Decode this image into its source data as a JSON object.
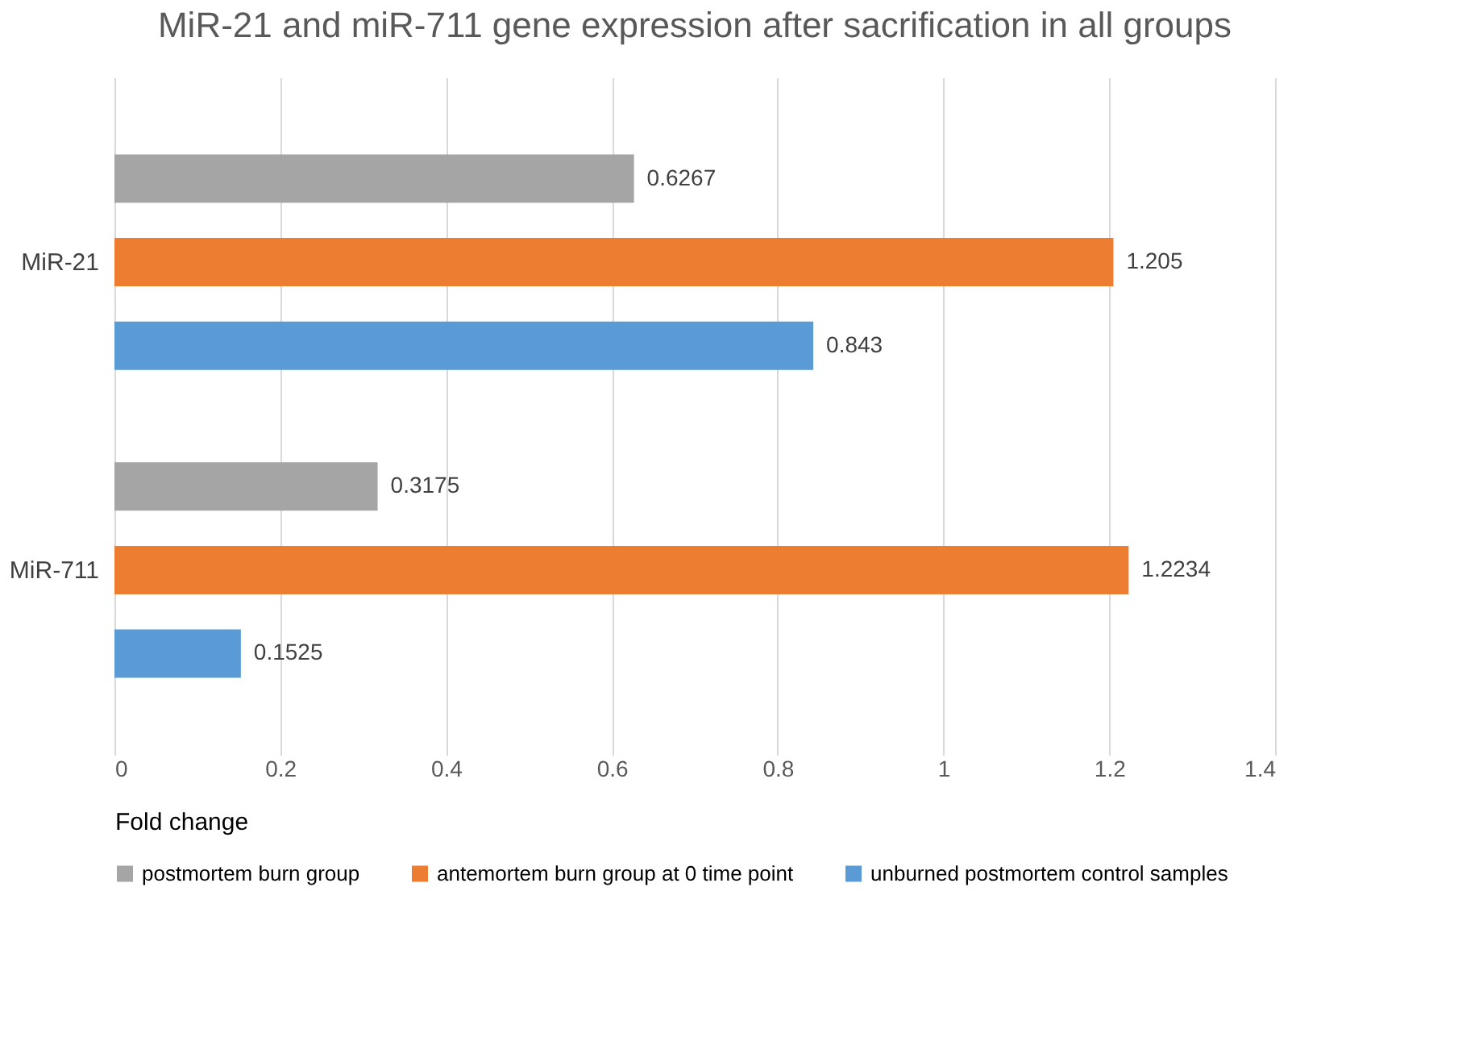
{
  "chart_data": {
    "type": "bar",
    "orientation": "horizontal",
    "title": "MiR-21 and miR-711 gene expression after sacrification in all groups",
    "xlabel": "Fold change",
    "categories": [
      "MiR-21",
      "MiR-711"
    ],
    "series": [
      {
        "name": "postmortem burn group",
        "color": "#a5a5a5",
        "values": [
          0.6267,
          0.3175
        ]
      },
      {
        "name": "antemortem burn group at 0 time point",
        "color": "#ed7d31",
        "values": [
          1.205,
          1.2234
        ]
      },
      {
        "name": "unburned postmortem control samples",
        "color": "#5b9bd5",
        "values": [
          0.843,
          0.1525
        ]
      }
    ],
    "xlim": [
      0,
      1.4
    ],
    "xticks": [
      0,
      0.2,
      0.4,
      0.6,
      0.8,
      1,
      1.2,
      1.4
    ],
    "grid": "x",
    "legend": "bottom",
    "data_labels": true
  }
}
